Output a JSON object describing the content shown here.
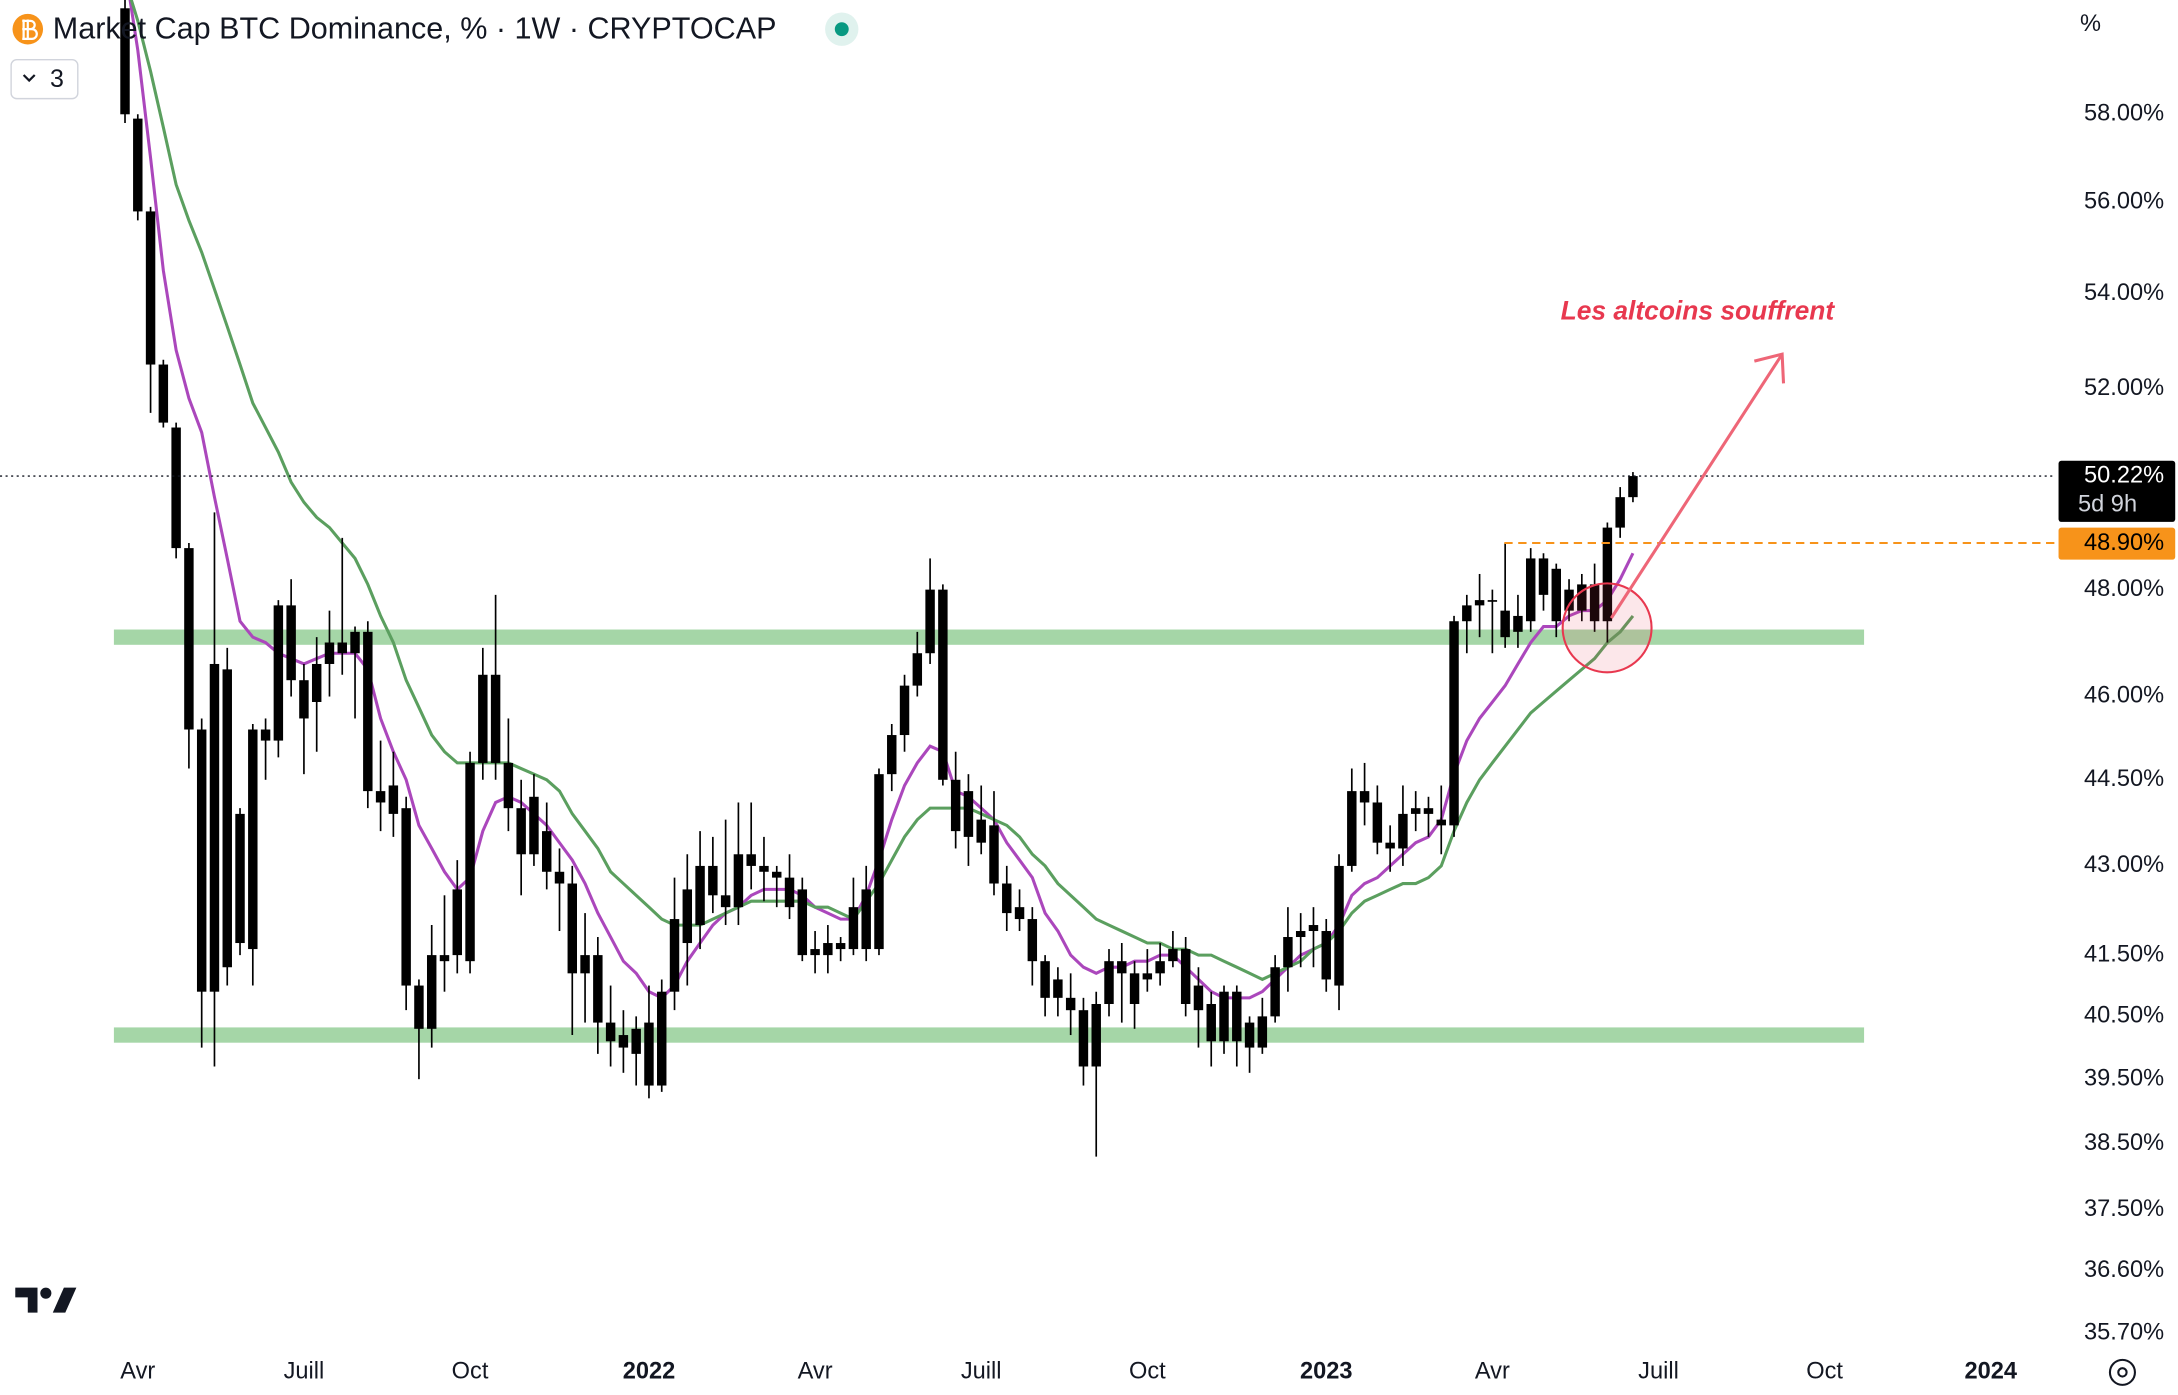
{
  "chart_data": {
    "type": "candlestick",
    "title": "Market Cap BTC Dominance, % · 1W · CRYPTOCAP",
    "indicator_count": 3,
    "unit_label": "%",
    "annotation": "Les altcoins souffrent",
    "log_scale": true,
    "grid": false,
    "ylim": [
      35.5,
      60.7
    ],
    "yticks": [
      {
        "value": 58,
        "label": "58.00%"
      },
      {
        "value": 56,
        "label": "56.00%"
      },
      {
        "value": 54,
        "label": "54.00%"
      },
      {
        "value": 52,
        "label": "52.00%"
      },
      {
        "value": 48,
        "label": "48.00%"
      },
      {
        "value": 46,
        "label": "46.00%"
      },
      {
        "value": 44.5,
        "label": "44.50%"
      },
      {
        "value": 43,
        "label": "43.00%"
      },
      {
        "value": 41.5,
        "label": "41.50%"
      },
      {
        "value": 40.5,
        "label": "40.50%"
      },
      {
        "value": 39.5,
        "label": "39.50%"
      },
      {
        "value": 38.5,
        "label": "38.50%"
      },
      {
        "value": 37.5,
        "label": "37.50%"
      },
      {
        "value": 36.6,
        "label": "36.60%"
      },
      {
        "value": 35.7,
        "label": "35.70%"
      }
    ],
    "current_price": {
      "value": 50.22,
      "label": "50.22%",
      "countdown": "5d 9h"
    },
    "level_line": {
      "value": 48.9,
      "label": "48.90%",
      "color": "#f7931a"
    },
    "zones": [
      47.1,
      40.2
    ],
    "zone_color": "#a5d6a7",
    "up_color": "#000000",
    "down_color": "#000000",
    "categories": [
      null,
      "Avr",
      null,
      null,
      null,
      null,
      null,
      null,
      null,
      null,
      null,
      null,
      null,
      null,
      "Juill",
      null,
      null,
      null,
      null,
      null,
      null,
      null,
      null,
      null,
      null,
      null,
      null,
      "Oct",
      null,
      null,
      null,
      null,
      null,
      null,
      null,
      null,
      null,
      null,
      null,
      null,
      null,
      "2022",
      null,
      null,
      null,
      null,
      null,
      null,
      null,
      null,
      null,
      null,
      null,
      null,
      "Avr",
      null,
      null,
      null,
      null,
      null,
      null,
      null,
      null,
      null,
      null,
      null,
      null,
      "Juill",
      null,
      null,
      null,
      null,
      null,
      null,
      null,
      null,
      null,
      null,
      null,
      null,
      "Oct",
      null,
      null,
      null,
      null,
      null,
      null,
      null,
      null,
      null,
      null,
      null,
      null,
      null,
      "2023",
      null,
      null,
      null,
      null,
      null,
      null,
      null,
      null,
      null,
      null,
      null,
      null,
      "Avr",
      null,
      null,
      null,
      null,
      null,
      null,
      null,
      null,
      null,
      null,
      null,
      null,
      "Juill",
      null,
      null,
      null,
      null,
      null,
      null,
      null,
      null,
      null,
      null,
      null,
      null,
      "Oct",
      null,
      null,
      null,
      null,
      null,
      null,
      null,
      null,
      null,
      null,
      null,
      null,
      "2024",
      null
    ],
    "open": [
      60.5,
      57.9,
      55.8,
      52.5,
      51.2,
      48.8,
      45.4,
      40.9,
      46.5,
      41.7,
      41.6,
      45.4,
      45.2,
      47.7,
      46.3,
      45.9,
      46.6,
      47.0,
      46.8,
      47.2,
      44.3,
      43.9,
      44.0,
      41.0,
      40.3,
      41.5,
      41.5,
      41.4,
      44.8,
      46.4,
      44.8,
      44.0,
      43.2,
      43.6,
      42.9,
      42.7,
      41.2,
      41.5,
      40.4,
      40.2,
      40.3,
      40.4,
      39.4,
      40.9,
      41.7,
      42.0,
      43.0,
      42.5,
      42.3,
      43.2,
      43.0,
      42.9,
      42.8,
      42.6,
      41.6,
      41.5,
      41.7,
      41.6,
      42.6,
      41.6,
      44.6,
      45.3,
      46.2,
      46.8,
      48.0,
      44.5,
      44.3,
      43.8,
      43.7,
      42.7,
      42.3,
      42.1,
      41.4,
      41.1,
      40.8,
      40.6,
      39.7,
      40.7,
      41.4,
      41.2,
      41.1,
      41.2,
      41.4,
      41.6,
      41.0,
      40.7,
      40.1,
      40.9,
      40.4,
      40.0,
      40.5,
      41.3,
      41.8,
      41.9,
      41.9,
      41.0,
      43.0,
      44.3,
      44.1,
      43.4,
      43.3,
      43.9,
      44.0,
      43.8,
      43.7,
      47.4,
      47.7,
      47.8,
      47.6,
      47.2,
      47.4,
      48.6,
      47.4,
      48.0,
      47.6,
      48.1,
      47.4,
      49.2,
      49.8,
      null,
      null,
      null,
      null,
      null,
      null,
      null,
      null,
      null,
      null,
      null,
      null,
      null,
      null,
      null,
      null,
      null,
      null,
      null,
      null,
      null,
      null,
      null,
      null,
      null,
      null,
      null,
      null,
      null
    ],
    "high": [
      60.7,
      58.0,
      55.9,
      52.6,
      51.3,
      48.9,
      45.6,
      49.5,
      46.9,
      44.0,
      45.5,
      45.6,
      47.8,
      48.2,
      46.6,
      47.1,
      47.6,
      49.0,
      47.3,
      47.4,
      45.2,
      45.0,
      44.2,
      41.1,
      42.0,
      42.5,
      43.1,
      45.0,
      46.9,
      47.9,
      45.6,
      44.5,
      44.6,
      44.1,
      43.3,
      43.0,
      42.2,
      41.8,
      41.0,
      40.6,
      40.5,
      41.0,
      41.1,
      42.8,
      43.2,
      43.6,
      43.5,
      43.8,
      44.1,
      44.1,
      43.5,
      43.0,
      43.2,
      42.8,
      41.9,
      42.0,
      41.8,
      42.8,
      43.0,
      44.7,
      45.5,
      46.4,
      47.2,
      48.6,
      48.1,
      45.0,
      44.6,
      44.4,
      44.3,
      43.0,
      42.6,
      42.3,
      41.5,
      41.3,
      41.2,
      40.8,
      40.9,
      41.6,
      41.7,
      41.4,
      41.6,
      41.7,
      41.9,
      41.8,
      41.3,
      40.9,
      41.0,
      41.0,
      40.5,
      40.8,
      41.5,
      42.3,
      42.2,
      42.3,
      42.1,
      43.2,
      44.7,
      44.8,
      44.4,
      43.7,
      44.4,
      44.3,
      44.2,
      44.4,
      47.5,
      47.9,
      48.3,
      48.0,
      48.9,
      47.9,
      48.8,
      48.7,
      48.5,
      48.2,
      48.3,
      48.5,
      49.3,
      50.0,
      50.3,
      null,
      null,
      null,
      null,
      null,
      null,
      null,
      null,
      null,
      null,
      null,
      null,
      null,
      null,
      null,
      null,
      null,
      null,
      null,
      null,
      null,
      null,
      null,
      null,
      null,
      null,
      null,
      null,
      null
    ],
    "low": [
      57.8,
      55.6,
      51.5,
      51.2,
      48.6,
      44.7,
      40.0,
      39.7,
      41.0,
      41.5,
      41.0,
      44.5,
      44.9,
      46.0,
      44.6,
      45.0,
      46.0,
      46.4,
      45.6,
      44.0,
      43.6,
      43.5,
      40.6,
      39.5,
      40.0,
      40.9,
      41.2,
      41.2,
      44.5,
      44.5,
      43.6,
      42.5,
      43.0,
      42.6,
      41.9,
      40.2,
      40.4,
      39.9,
      39.7,
      39.6,
      39.4,
      39.2,
      39.3,
      40.6,
      41.0,
      41.6,
      42.2,
      42.0,
      42.0,
      42.6,
      42.4,
      42.3,
      42.1,
      41.4,
      41.2,
      41.2,
      41.4,
      41.5,
      41.4,
      41.5,
      44.3,
      45.0,
      46.0,
      46.6,
      44.4,
      43.3,
      43.0,
      43.2,
      42.5,
      41.9,
      41.9,
      41.0,
      40.5,
      40.5,
      40.2,
      39.4,
      38.3,
      40.5,
      40.4,
      40.3,
      40.9,
      41.0,
      41.3,
      40.5,
      40.0,
      39.7,
      39.9,
      39.7,
      39.6,
      39.9,
      40.4,
      40.9,
      41.3,
      41.3,
      40.9,
      40.6,
      42.9,
      43.7,
      43.2,
      42.9,
      43.0,
      43.6,
      43.5,
      43.2,
      43.5,
      46.8,
      47.1,
      46.8,
      46.9,
      46.9,
      47.2,
      47.6,
      47.1,
      47.4,
      47.4,
      47.2,
      47.0,
      49.0,
      49.7,
      null,
      null,
      null,
      null,
      null,
      null,
      null,
      null,
      null,
      null,
      null,
      null,
      null,
      null,
      null,
      null,
      null,
      null,
      null,
      null,
      null,
      null,
      null,
      null,
      null,
      null,
      null,
      null,
      null
    ],
    "close": [
      58.0,
      55.8,
      52.5,
      51.3,
      48.8,
      45.4,
      40.9,
      46.6,
      41.3,
      43.9,
      45.4,
      45.2,
      47.7,
      46.3,
      45.6,
      46.6,
      47.0,
      46.8,
      47.2,
      44.3,
      44.1,
      44.4,
      41.0,
      40.3,
      41.5,
      41.4,
      42.6,
      44.8,
      46.4,
      44.8,
      44.0,
      43.2,
      44.2,
      42.9,
      42.7,
      41.2,
      41.5,
      40.4,
      40.1,
      40.0,
      39.9,
      39.4,
      40.9,
      42.1,
      42.6,
      43.0,
      42.5,
      42.3,
      43.2,
      43.0,
      42.9,
      42.8,
      42.3,
      41.5,
      41.5,
      41.7,
      41.6,
      42.3,
      41.6,
      44.6,
      45.3,
      46.2,
      46.8,
      48.0,
      44.5,
      43.6,
      43.5,
      43.4,
      42.7,
      42.2,
      42.1,
      41.4,
      40.8,
      40.8,
      40.6,
      39.7,
      40.7,
      41.4,
      41.2,
      40.7,
      41.2,
      41.4,
      41.6,
      40.7,
      40.6,
      40.1,
      40.9,
      40.1,
      40.0,
      40.5,
      41.3,
      41.8,
      41.9,
      42.0,
      41.1,
      43.0,
      44.3,
      44.1,
      43.4,
      43.3,
      43.9,
      44.0,
      43.9,
      43.7,
      47.4,
      47.7,
      47.8,
      47.8,
      47.1,
      47.5,
      48.6,
      47.9,
      48.4,
      47.6,
      48.1,
      47.4,
      49.2,
      49.8,
      50.22,
      null,
      null,
      null,
      null,
      null,
      null,
      null,
      null,
      null,
      null,
      null,
      null,
      null,
      null,
      null,
      null,
      null,
      null,
      null,
      null,
      null,
      null,
      null,
      null,
      null,
      null,
      null,
      null,
      null
    ],
    "ma_lines": [
      {
        "color": "#ab47bc",
        "values": [
          61.5,
          59.5,
          57.0,
          54.5,
          52.8,
          51.8,
          51.1,
          49.8,
          48.6,
          47.4,
          47.1,
          47.0,
          46.8,
          46.7,
          46.6,
          46.7,
          46.8,
          46.8,
          46.8,
          46.5,
          45.6,
          45.0,
          44.5,
          43.7,
          43.3,
          42.9,
          42.6,
          42.8,
          43.6,
          44.1,
          44.2,
          44.1,
          43.9,
          43.7,
          43.4,
          43.1,
          42.7,
          42.2,
          41.8,
          41.4,
          41.2,
          40.9,
          40.8,
          41.0,
          41.4,
          41.7,
          42.0,
          42.2,
          42.3,
          42.5,
          42.6,
          42.6,
          42.6,
          42.5,
          42.3,
          42.2,
          42.1,
          42.1,
          42.5,
          43.1,
          43.8,
          44.4,
          44.8,
          45.1,
          45.0,
          44.3,
          44.2,
          44.0,
          43.8,
          43.4,
          43.1,
          42.8,
          42.2,
          41.9,
          41.5,
          41.3,
          41.2,
          41.3,
          41.3,
          41.4,
          41.4,
          41.5,
          41.5,
          41.3,
          41.1,
          40.9,
          40.8,
          40.8,
          40.8,
          40.9,
          41.1,
          41.3,
          41.5,
          41.6,
          41.7,
          42.0,
          42.5,
          42.7,
          42.8,
          43.0,
          43.2,
          43.4,
          43.5,
          43.8,
          44.6,
          45.2,
          45.6,
          45.9,
          46.2,
          46.6,
          47.0,
          47.3,
          47.3,
          47.5,
          47.6,
          47.6,
          47.8,
          48.2,
          48.7,
          null,
          null,
          null,
          null,
          null,
          null,
          null,
          null,
          null,
          null,
          null,
          null,
          null,
          null,
          null,
          null,
          null,
          null,
          null,
          null,
          null,
          null,
          null,
          null,
          null,
          null,
          null,
          null,
          null
        ]
      },
      {
        "color": "#5b9f5f",
        "values": [
          61.2,
          60.2,
          59.0,
          57.7,
          56.4,
          55.6,
          54.9,
          54.1,
          53.3,
          52.5,
          51.7,
          51.2,
          50.7,
          50.1,
          49.7,
          49.4,
          49.2,
          48.9,
          48.6,
          48.1,
          47.5,
          47.0,
          46.3,
          45.8,
          45.3,
          45.0,
          44.8,
          44.8,
          44.8,
          44.8,
          44.8,
          44.7,
          44.6,
          44.5,
          44.3,
          43.9,
          43.6,
          43.3,
          42.9,
          42.7,
          42.5,
          42.3,
          42.1,
          42.0,
          42.0,
          42.0,
          42.1,
          42.2,
          42.3,
          42.4,
          42.4,
          42.4,
          42.4,
          42.4,
          42.3,
          42.3,
          42.2,
          42.1,
          42.4,
          42.7,
          43.1,
          43.5,
          43.8,
          44.0,
          44.0,
          44.0,
          44.0,
          43.9,
          43.8,
          43.7,
          43.5,
          43.2,
          43.0,
          42.7,
          42.5,
          42.3,
          42.1,
          42.0,
          41.9,
          41.8,
          41.7,
          41.7,
          41.6,
          41.6,
          41.5,
          41.5,
          41.4,
          41.3,
          41.2,
          41.1,
          41.2,
          41.3,
          41.4,
          41.6,
          41.7,
          41.9,
          42.2,
          42.4,
          42.5,
          42.6,
          42.7,
          42.7,
          42.8,
          43.0,
          43.6,
          44.1,
          44.5,
          44.8,
          45.1,
          45.4,
          45.7,
          45.9,
          46.1,
          46.3,
          46.5,
          46.7,
          47.0,
          47.2,
          47.5,
          null,
          null,
          null,
          null,
          null,
          null,
          null,
          null,
          null,
          null,
          null,
          null,
          null,
          null,
          null,
          null,
          null,
          null,
          null,
          null,
          null,
          null,
          null,
          null,
          null,
          null,
          null,
          null,
          null
        ]
      }
    ]
  }
}
